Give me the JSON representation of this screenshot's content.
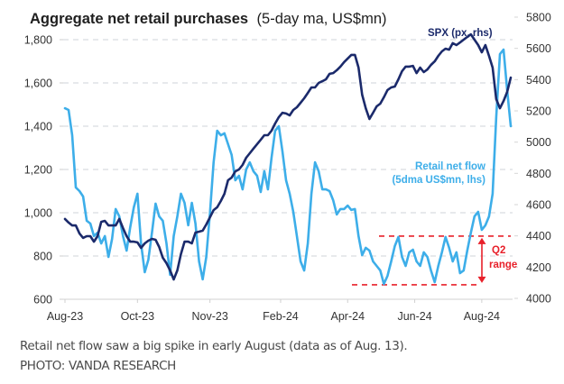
{
  "chart_data": {
    "type": "line",
    "title": "Aggregate net retail purchases",
    "title_suffix": "(5-day ma, US$mn)",
    "xlabel": "",
    "ylabel": "",
    "y2label": "",
    "grid": true,
    "x_range": [
      0,
      123
    ],
    "x_ticks": [
      {
        "label": "Aug-23",
        "x": 0
      },
      {
        "label": "Oct-23",
        "x": 20
      },
      {
        "label": "Nov-23",
        "x": 40
      },
      {
        "label": "Feb-24",
        "x": 59.5
      },
      {
        "label": "Apr-24",
        "x": 78
      },
      {
        "label": "Jun-24",
        "x": 96.5
      },
      {
        "label": "Aug-24",
        "x": 115
      }
    ],
    "y_left": {
      "range": [
        600,
        1800
      ],
      "ticks": [
        "600",
        "800",
        "1,000",
        "1,200",
        "1,400",
        "1,600",
        "1,800"
      ],
      "tick_values": [
        600,
        800,
        1000,
        1200,
        1400,
        1600,
        1800
      ]
    },
    "y_right": {
      "range": [
        4000,
        5800
      ],
      "ticks": [
        "4000",
        "4200",
        "4400",
        "4600",
        "4800",
        "5000",
        "5200",
        "5400",
        "5600",
        "5800"
      ],
      "tick_values": [
        4000,
        4200,
        4400,
        4600,
        4800,
        5000,
        5200,
        5400,
        5600,
        5800
      ]
    },
    "series": [
      {
        "name": "SPX (px, rhs)",
        "axis": "right",
        "color": "#1b2a6b",
        "values": [
          4508,
          4485,
          4467,
          4467,
          4415,
          4387,
          4398,
          4398,
          4363,
          4398,
          4490,
          4496,
          4467,
          4467,
          4467,
          4508,
          4450,
          4398,
          4363,
          4363,
          4358,
          4323,
          4352,
          4369,
          4381,
          4375,
          4329,
          4260,
          4225,
          4179,
          4121,
          4179,
          4283,
          4363,
          4363,
          4352,
          4421,
          4427,
          4433,
          4473,
          4519,
          4565,
          4583,
          4623,
          4669,
          4756,
          4773,
          4813,
          4825,
          4854,
          4900,
          4929,
          4958,
          4987,
          5015,
          5044,
          5044,
          5073,
          5119,
          5160,
          5188,
          5183,
          5171,
          5206,
          5223,
          5252,
          5281,
          5315,
          5350,
          5350,
          5379,
          5390,
          5402,
          5437,
          5442,
          5460,
          5483,
          5512,
          5535,
          5558,
          5558,
          5477,
          5304,
          5217,
          5148,
          5188,
          5229,
          5246,
          5287,
          5333,
          5350,
          5356,
          5402,
          5454,
          5483,
          5483,
          5488,
          5442,
          5477,
          5448,
          5465,
          5494,
          5517,
          5552,
          5581,
          5598,
          5592,
          5633,
          5621,
          5638,
          5656,
          5673,
          5690,
          5656,
          5621,
          5575,
          5621,
          5552,
          5477,
          5275,
          5217,
          5263,
          5321,
          5413
        ]
      },
      {
        "name": "Retail net flow (5dma US$mn, lhs)",
        "axis": "left",
        "color": "#3daee9",
        "values": [
          1483,
          1475,
          1358,
          1117,
          1100,
          1075,
          963,
          950,
          892,
          908,
          858,
          892,
          796,
          879,
          1017,
          983,
          892,
          825,
          933,
          1025,
          1088,
          858,
          725,
          783,
          908,
          1042,
          983,
          963,
          858,
          713,
          892,
          983,
          1088,
          1046,
          942,
          1046,
          950,
          775,
          692,
          796,
          1000,
          1233,
          1379,
          1358,
          1367,
          1317,
          1267,
          1150,
          1171,
          1108,
          1200,
          1233,
          1192,
          1171,
          1096,
          1192,
          1108,
          1254,
          1379,
          1400,
          1283,
          1150,
          1088,
          1004,
          892,
          775,
          733,
          858,
          1088,
          1233,
          1192,
          1108,
          1108,
          1100,
          1058,
          992,
          1017,
          1017,
          1033,
          1013,
          1017,
          892,
          804,
          838,
          825,
          775,
          754,
          733,
          671,
          708,
          775,
          846,
          888,
          796,
          754,
          817,
          829,
          775,
          754,
          817,
          796,
          733,
          679,
          754,
          817,
          888,
          838,
          775,
          817,
          721,
          733,
          825,
          908,
          983,
          1004,
          921,
          942,
          983,
          1088,
          1442,
          1733,
          1754,
          1567,
          1400
        ]
      }
    ],
    "annotations": {
      "spx_label": "SPX (px, rhs)",
      "retail_label_line1": "Retail net flow",
      "retail_label_line2": "(5dma US$mn, lhs)",
      "q2_label_line1": "Q2",
      "q2_label_line2": "range",
      "q2_range": {
        "low": 667,
        "high": 892,
        "color": "#e8202a"
      }
    },
    "legend": "inline-labels"
  },
  "caption": {
    "text": "Retail net flow saw a big spike in early August (data as of Aug. 13).",
    "credit": "PHOTO: VANDA RESEARCH"
  }
}
